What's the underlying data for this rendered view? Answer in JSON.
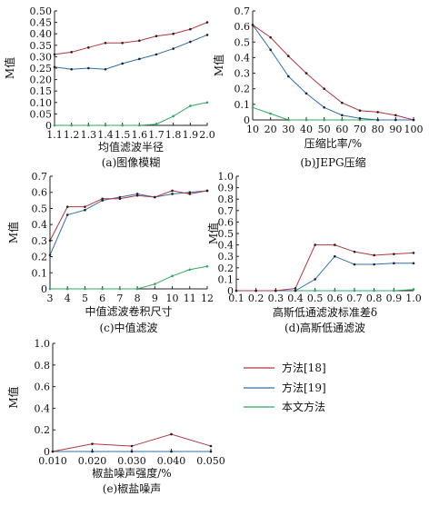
{
  "legend": [
    {
      "label": "方法[18]",
      "color": "#b5353d"
    },
    {
      "label": "方法[19]",
      "color": "#2f6fae"
    },
    {
      "label": "本文方法",
      "color": "#2fa85f"
    }
  ],
  "chart_data": [
    {
      "type": "line",
      "caption": "(a)图像模糊",
      "xlabel": "均值滤波半径",
      "ylabel": "M值",
      "x": [
        1.1,
        1.2,
        1.3,
        1.4,
        1.5,
        1.6,
        1.7,
        1.8,
        1.9,
        2.0
      ],
      "x_tick_labels": [
        "1.1",
        "1.2",
        "1.3",
        "1.4",
        "1.5",
        "1.6",
        "1.7",
        "1.8",
        "1.9",
        "2.0"
      ],
      "xlim": [
        1.1,
        2.0
      ],
      "ylim": [
        0,
        0.5
      ],
      "y_ticks": [
        "0",
        "0.05",
        "0.10",
        "0.15",
        "0.20",
        "0.25",
        "0.30",
        "0.35",
        "0.40",
        "0.45",
        "0.50"
      ],
      "series": [
        {
          "values": [
            0.31,
            0.32,
            0.34,
            0.36,
            0.36,
            0.37,
            0.39,
            0.4,
            0.42,
            0.45
          ]
        },
        {
          "values": [
            0.255,
            0.245,
            0.25,
            0.245,
            0.27,
            0.29,
            0.31,
            0.335,
            0.365,
            0.395
          ]
        },
        {
          "values": [
            0,
            0,
            0,
            0,
            0,
            0,
            0.005,
            0.04,
            0.085,
            0.1
          ]
        }
      ]
    },
    {
      "type": "line",
      "caption": "(b)JEPG压缩",
      "xlabel": "压缩比率/%",
      "ylabel": "M值",
      "x": [
        10,
        20,
        30,
        40,
        50,
        60,
        70,
        80,
        90,
        100
      ],
      "x_tick_labels": [
        "10",
        "20",
        "30",
        "40",
        "50",
        "60",
        "70",
        "80",
        "90",
        "100"
      ],
      "xlim": [
        10,
        100
      ],
      "ylim": [
        0,
        0.7
      ],
      "y_ticks": [
        "0",
        "0.1",
        "0.2",
        "0.3",
        "0.4",
        "0.5",
        "0.6",
        "0.7"
      ],
      "series": [
        {
          "values": [
            0.61,
            0.53,
            0.41,
            0.3,
            0.2,
            0.11,
            0.06,
            0.05,
            0.03,
            0.0
          ]
        },
        {
          "values": [
            0.61,
            0.45,
            0.28,
            0.17,
            0.08,
            0.03,
            0.01,
            0.0,
            0.0,
            0.0
          ]
        },
        {
          "values": [
            0.08,
            0.04,
            0.0,
            0.0,
            0.0,
            0.0,
            0.0,
            0.0,
            0.0,
            0.0
          ]
        }
      ]
    },
    {
      "type": "line",
      "caption": "(c)中值滤波",
      "xlabel": "中值滤波卷积尺寸",
      "ylabel": "M值",
      "x": [
        3,
        4,
        5,
        6,
        7,
        8,
        9,
        10,
        11,
        12
      ],
      "x_tick_labels": [
        "3",
        "4",
        "5",
        "6",
        "7",
        "8",
        "9",
        "10",
        "11",
        "12"
      ],
      "xlim": [
        3,
        12
      ],
      "ylim": [
        0,
        0.7
      ],
      "y_ticks": [
        "0",
        "0.1",
        "0.2",
        "0.3",
        "0.4",
        "0.5",
        "0.6",
        "0.7"
      ],
      "series": [
        {
          "values": [
            0.3,
            0.51,
            0.51,
            0.56,
            0.56,
            0.58,
            0.57,
            0.61,
            0.59,
            0.61
          ]
        },
        {
          "values": [
            0.21,
            0.46,
            0.49,
            0.55,
            0.57,
            0.59,
            0.57,
            0.59,
            0.6,
            0.61
          ]
        },
        {
          "values": [
            0,
            0,
            0,
            0,
            0,
            0,
            0.03,
            0.08,
            0.12,
            0.14
          ]
        }
      ]
    },
    {
      "type": "line",
      "caption": "(d)高斯低通滤波",
      "xlabel": "高斯低通滤波标准差δ",
      "ylabel": "M值",
      "x": [
        0.1,
        0.2,
        0.3,
        0.4,
        0.5,
        0.6,
        0.7,
        0.8,
        0.9,
        1.0
      ],
      "x_tick_labels": [
        "0.1",
        "0.2",
        "0.3",
        "0.4",
        "0.5",
        "0.6",
        "0.7",
        "0.8",
        "0.9",
        "1.0"
      ],
      "xlim": [
        0.1,
        1.0
      ],
      "ylim": [
        0,
        1.0
      ],
      "y_ticks": [
        "0",
        "0.1",
        "0.2",
        "0.3",
        "0.4",
        "0.5",
        "0.6",
        "0.7",
        "0.8",
        "0.9",
        "1.0"
      ],
      "series": [
        {
          "values": [
            0,
            0,
            0,
            0.02,
            0.4,
            0.4,
            0.34,
            0.31,
            0.32,
            0.33
          ]
        },
        {
          "values": [
            0,
            0,
            0,
            0.0,
            0.1,
            0.3,
            0.23,
            0.23,
            0.24,
            0.24
          ]
        },
        {
          "values": [
            0,
            0,
            0,
            0,
            0,
            0,
            0,
            0,
            0,
            0.01
          ]
        }
      ]
    },
    {
      "type": "line",
      "caption": "(e)椒盐噪声",
      "xlabel": "椒盐噪声强度/%",
      "ylabel": "M值",
      "x": [
        0.01,
        0.02,
        0.03,
        0.04,
        0.05
      ],
      "x_tick_labels": [
        "0.010",
        "0.020",
        "0.030",
        "0.040",
        "0.050"
      ],
      "xlim": [
        0.01,
        0.05
      ],
      "ylim": [
        0,
        1.0
      ],
      "y_ticks": [
        "0",
        "0.2",
        "0.4",
        "0.6",
        "0.8",
        "1.0"
      ],
      "series": [
        {
          "values": [
            0.0,
            0.07,
            0.05,
            0.16,
            0.05
          ]
        },
        {
          "values": [
            0,
            0,
            0,
            0,
            0
          ]
        },
        {
          "values": [
            0,
            0,
            0,
            0,
            0
          ]
        }
      ]
    }
  ]
}
